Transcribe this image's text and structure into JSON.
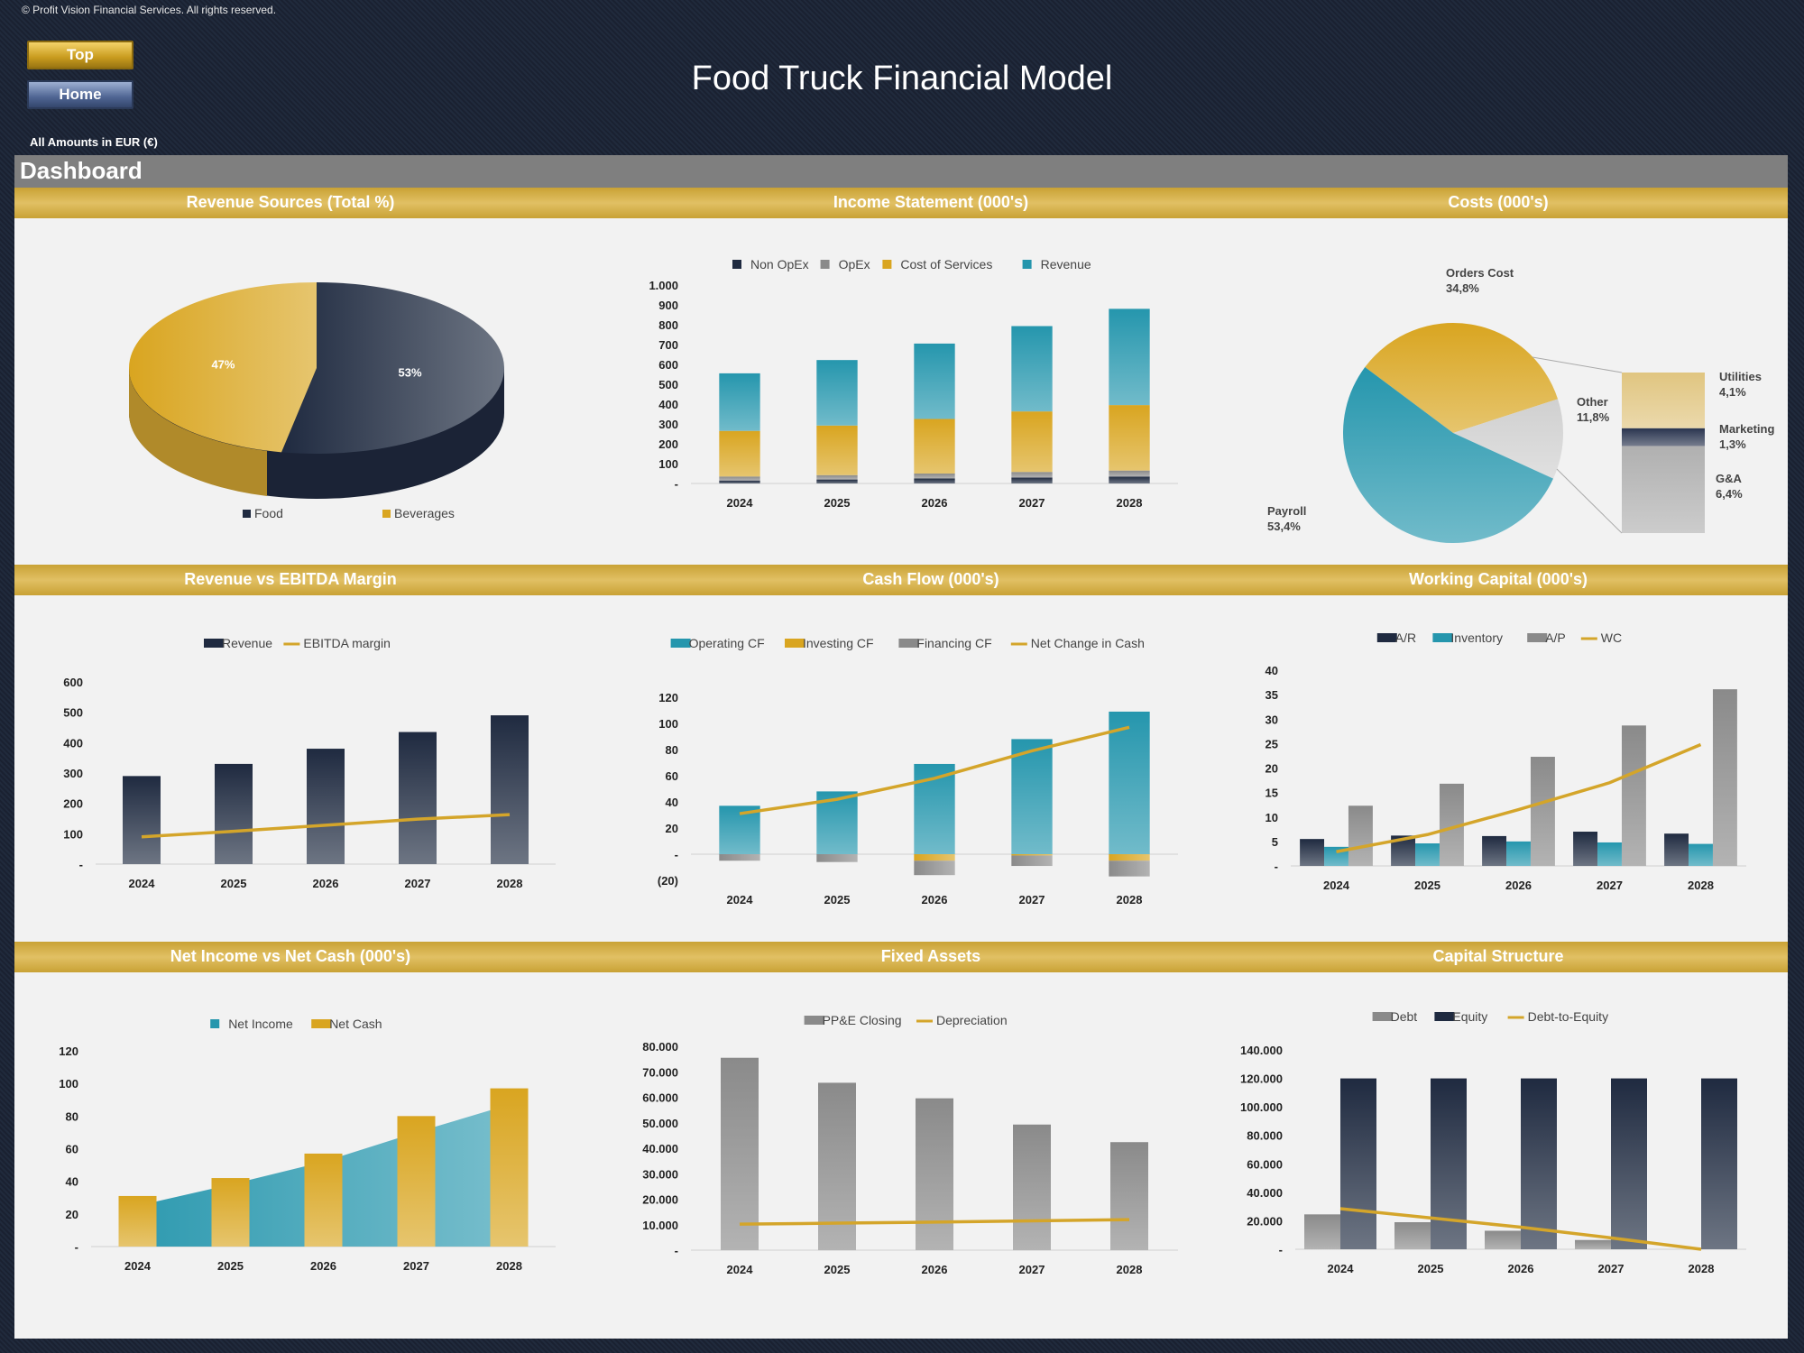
{
  "header": {
    "copyright": "© Profit Vision Financial Services. All rights reserved.",
    "top_button": "Top",
    "home_button": "Home",
    "title": "Food Truck Financial Model",
    "amounts_note": "All Amounts in  EUR (€)",
    "dashboard_title": "Dashboard"
  },
  "sections": {
    "row1": [
      "Revenue Sources (Total %)",
      "Income Statement (000's)",
      "Costs (000's)"
    ],
    "row2": [
      "Revenue vs EBITDA Margin",
      "Cash Flow (000's)",
      "Working Capital (000's)"
    ],
    "row3": [
      "Net Income vs Net Cash (000's)",
      "Fixed Assets",
      "Capital Structure"
    ]
  },
  "colors": {
    "navy": "#1f2a40",
    "gold": "#d9a520",
    "teal": "#2596ad",
    "gray": "#8a8a8a",
    "line_gold": "#d4a52a",
    "section_band": "#d4b14a"
  },
  "chart_data": [
    {
      "id": "revenue_sources",
      "type": "pie",
      "labels": [
        "Food",
        "Beverages"
      ],
      "values": [
        53,
        47
      ],
      "data_labels": [
        "53%",
        "47%"
      ],
      "colors": [
        "#1f2a40",
        "#d9a520"
      ],
      "legend": "bottom"
    },
    {
      "id": "income_statement",
      "type": "bar",
      "stacked": true,
      "categories": [
        "2024",
        "2025",
        "2026",
        "2027",
        "2028"
      ],
      "series": [
        {
          "name": "Non OpEx",
          "values": [
            15,
            20,
            25,
            30,
            35
          ],
          "color": "#1f2a40"
        },
        {
          "name": "OpEx",
          "values": [
            20,
            22,
            25,
            28,
            30
          ],
          "color": "#8a8a8a"
        },
        {
          "name": "Cost of Services",
          "values": [
            230,
            250,
            275,
            305,
            330
          ],
          "color": "#d9a520"
        },
        {
          "name": "Revenue",
          "values": [
            290,
            330,
            380,
            430,
            485
          ],
          "color": "#2596ad"
        }
      ],
      "yticks": [
        "-",
        "100",
        "200",
        "300",
        "400",
        "500",
        "600",
        "700",
        "800",
        "900",
        "1.000"
      ],
      "ylim": [
        0,
        1000
      ],
      "legend": "top"
    },
    {
      "id": "costs",
      "type": "pie",
      "variant": "bar-of-pie",
      "labels": [
        "Orders Cost",
        "Payroll",
        "Other",
        "Utilities",
        "Marketing",
        "G&A"
      ],
      "values": [
        34.8,
        53.4,
        11.8,
        4.1,
        1.3,
        6.4
      ],
      "data_labels": [
        "34,8%",
        "53,4%",
        "11,8%",
        "4,1%",
        "1,3%",
        "6,4%"
      ]
    },
    {
      "id": "revenue_vs_ebitda",
      "type": "bar",
      "categories": [
        "2024",
        "2025",
        "2026",
        "2027",
        "2028"
      ],
      "series": [
        {
          "name": "Revenue",
          "kind": "bar",
          "values": [
            290,
            330,
            380,
            435,
            490
          ],
          "color": "#1f2a40"
        },
        {
          "name": "EBITDA margin",
          "kind": "line",
          "values": [
            90,
            108,
            128,
            148,
            163
          ],
          "color": "#d4a52a"
        }
      ],
      "yticks": [
        "-",
        "100",
        "200",
        "300",
        "400",
        "500",
        "600"
      ],
      "ylim": [
        0,
        600
      ],
      "legend": "top"
    },
    {
      "id": "cash_flow",
      "type": "bar",
      "categories": [
        "2024",
        "2025",
        "2026",
        "2027",
        "2028"
      ],
      "series": [
        {
          "name": "Operating CF",
          "kind": "bar",
          "values": [
            37,
            48,
            69,
            88,
            109
          ],
          "color": "#2596ad"
        },
        {
          "name": "Investing CF",
          "kind": "bar",
          "values": [
            0,
            0,
            -5,
            -1,
            -5
          ],
          "color": "#d9a520"
        },
        {
          "name": "Financing CF",
          "kind": "bar",
          "values": [
            -5,
            -6,
            -11,
            -8,
            -12
          ],
          "color": "#8a8a8a"
        },
        {
          "name": "Net Change in Cash",
          "kind": "line",
          "values": [
            31,
            42,
            58,
            79,
            97
          ],
          "color": "#d4a52a"
        }
      ],
      "yticks": [
        "(20)",
        "-",
        "20",
        "40",
        "60",
        "80",
        "100",
        "120"
      ],
      "ylim": [
        -20,
        120
      ],
      "legend": "top"
    },
    {
      "id": "working_capital",
      "type": "bar",
      "categories": [
        "2024",
        "2025",
        "2026",
        "2027",
        "2028"
      ],
      "series": [
        {
          "name": "A/R",
          "kind": "bar",
          "values": [
            5.5,
            6.2,
            6.1,
            7.0,
            6.6
          ],
          "color": "#1f2a40"
        },
        {
          "name": "Inventory",
          "kind": "bar",
          "values": [
            3.9,
            4.6,
            5.0,
            4.8,
            4.5
          ],
          "color": "#2596ad"
        },
        {
          "name": "A/P",
          "kind": "bar",
          "values": [
            12.3,
            16.8,
            22.3,
            28.7,
            36.1
          ],
          "color": "#8a8a8a"
        },
        {
          "name": "WC",
          "kind": "line",
          "values": [
            2.9,
            6.4,
            11.5,
            17.0,
            24.8
          ],
          "color": "#d4a52a"
        }
      ],
      "yticks": [
        "-",
        "5",
        "10",
        "15",
        "20",
        "25",
        "30",
        "35",
        "40"
      ],
      "ylim": [
        0,
        40
      ],
      "legend": "top"
    },
    {
      "id": "net_income_vs_cash",
      "type": "bar",
      "categories": [
        "2024",
        "2025",
        "2026",
        "2027",
        "2028"
      ],
      "series": [
        {
          "name": "Net Income",
          "kind": "area",
          "values": [
            25,
            38,
            52,
            70,
            87
          ],
          "color": "#2596ad"
        },
        {
          "name": "Net Cash",
          "kind": "bar",
          "values": [
            31,
            42,
            57,
            80,
            97
          ],
          "color": "#d9a520"
        }
      ],
      "yticks": [
        "-",
        "20",
        "40",
        "60",
        "80",
        "100",
        "120"
      ],
      "ylim": [
        0,
        120
      ],
      "legend": "top"
    },
    {
      "id": "fixed_assets",
      "type": "bar",
      "categories": [
        "2024",
        "2025",
        "2026",
        "2027",
        "2028"
      ],
      "series": [
        {
          "name": "PP&E Closing",
          "kind": "bar",
          "values": [
            75500,
            65700,
            59600,
            49300,
            42400
          ],
          "color": "#8a8a8a"
        },
        {
          "name": "Depreciation",
          "kind": "line",
          "values": [
            10200,
            10600,
            11000,
            11500,
            12000
          ],
          "color": "#d4a52a"
        }
      ],
      "yticks": [
        "-",
        "10.000",
        "20.000",
        "30.000",
        "40.000",
        "50.000",
        "60.000",
        "70.000",
        "80.000"
      ],
      "ylim": [
        0,
        80000
      ],
      "legend": "top"
    },
    {
      "id": "capital_structure",
      "type": "bar",
      "categories": [
        "2024",
        "2025",
        "2026",
        "2027",
        "2028"
      ],
      "series": [
        {
          "name": "Debt",
          "kind": "bar",
          "values": [
            24500,
            19000,
            13000,
            6500,
            0
          ],
          "color": "#8a8a8a"
        },
        {
          "name": "Equity",
          "kind": "bar",
          "values": [
            120000,
            120000,
            120000,
            120000,
            120000
          ],
          "color": "#1f2a40"
        },
        {
          "name": "Debt-to-Equity",
          "kind": "line",
          "values": [
            28500,
            22000,
            15500,
            8000,
            0
          ],
          "color": "#d4a52a"
        }
      ],
      "yticks": [
        "-",
        "20.000",
        "40.000",
        "60.000",
        "80.000",
        "100.000",
        "120.000",
        "140.000"
      ],
      "ylim": [
        0,
        140000
      ],
      "legend": "top"
    }
  ]
}
